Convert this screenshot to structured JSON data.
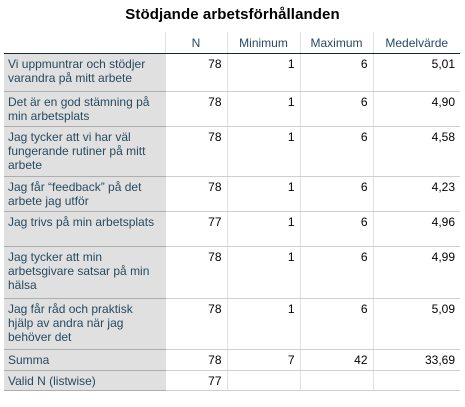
{
  "table": {
    "title": "Stödjande arbetsförhållanden",
    "headers": {
      "n": "N",
      "minimum": "Minimum",
      "maximum": "Maximum",
      "mean": "Medelvärde"
    },
    "rows": [
      {
        "label": "Vi uppmuntrar och stödjer varandra på mitt arbete",
        "n": "78",
        "min": "1",
        "max": "6",
        "mean": "5,01"
      },
      {
        "label": "Det är en god stämning på min arbetsplats",
        "n": "78",
        "min": "1",
        "max": "6",
        "mean": "4,90"
      },
      {
        "label": "Jag tycker att vi har väl fungerande rutiner på mitt arbete",
        "n": "78",
        "min": "1",
        "max": "6",
        "mean": "4,58"
      },
      {
        "label": "Jag får “feedback” på det arbete jag utför",
        "n": "78",
        "min": "1",
        "max": "6",
        "mean": "4,23"
      },
      {
        "label": "Jag trivs på min arbetsplats",
        "n": "77",
        "min": "1",
        "max": "6",
        "mean": "4,96"
      },
      {
        "label": "Jag tycker att min arbetsgivare satsar på min hälsa",
        "n": "78",
        "min": "1",
        "max": "6",
        "mean": "4,99"
      },
      {
        "label": "Jag får råd och praktisk hjälp av andra när jag behöver det",
        "n": "78",
        "min": "1",
        "max": "6",
        "mean": "5,09"
      },
      {
        "label": "Summa",
        "n": "78",
        "min": "7",
        "max": "42",
        "mean": "33,69"
      }
    ],
    "valid_row": {
      "label": "Valid N (listwise)",
      "n": "77"
    }
  }
}
